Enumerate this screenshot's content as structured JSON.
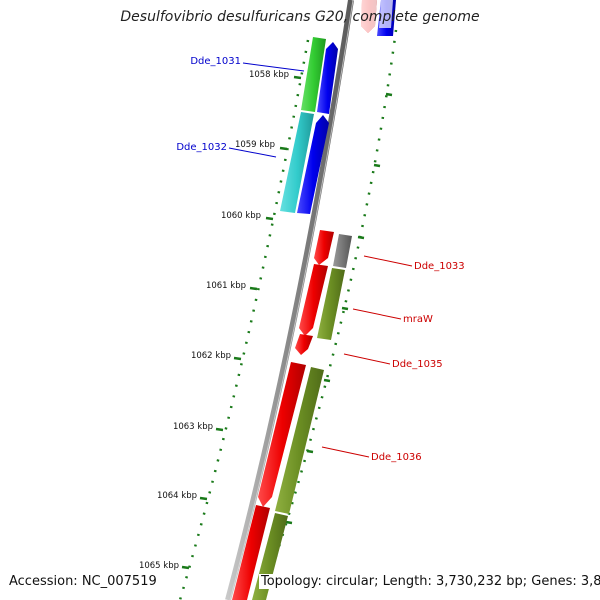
{
  "title": "Desulfovibrio desulfuricans G20, complete genome",
  "footer": {
    "accession": "Accession: NC_007519",
    "topology": "Topology: circular; Length: 3,730,232 bp; Genes: 3,855"
  },
  "ticks": [
    "1058 kbp",
    "1059 kbp",
    "1060 kbp",
    "1061 kbp",
    "1062 kbp",
    "1063 kbp",
    "1064 kbp",
    "1065 kbp"
  ],
  "genes": [
    {
      "name": "Dde_1031",
      "color": "#0000cc"
    },
    {
      "name": "Dde_1032",
      "color": "#0000cc"
    },
    {
      "name": "Dde_1033",
      "color": "#cc0000"
    },
    {
      "name": "mraW",
      "color": "#cc0000"
    },
    {
      "name": "Dde_1035",
      "color": "#cc0000"
    },
    {
      "name": "Dde_1036",
      "color": "#cc0000"
    }
  ],
  "colors": {
    "cds_forward": "#ee0000",
    "cds_reverse_blue": "#0000ee",
    "cog_green": "#33cc33",
    "cog_cyan": "#33cccc",
    "cog_olive": "#6b8e23",
    "cog_grey": "#777777",
    "backbone": "#888888",
    "tick": "#1a7a1a"
  }
}
